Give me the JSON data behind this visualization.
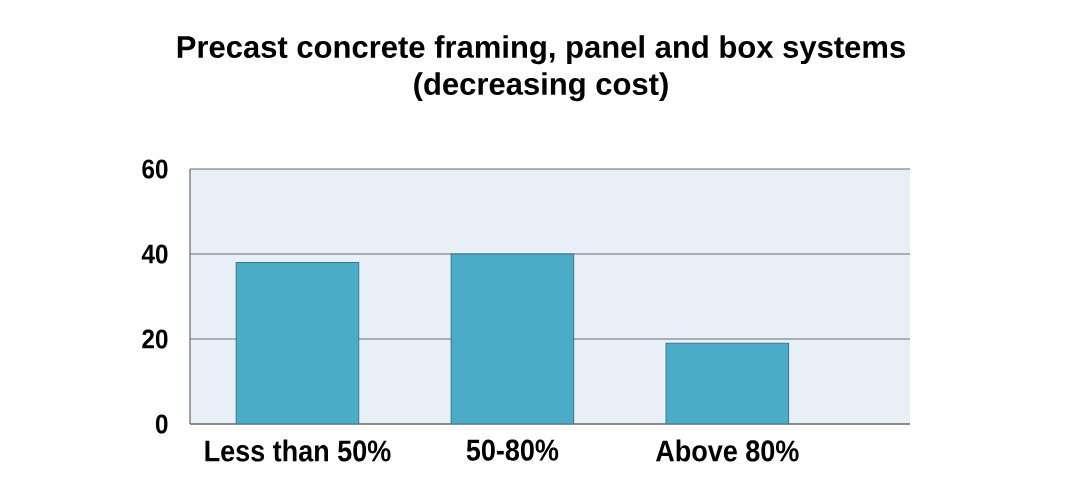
{
  "chart_data": {
    "type": "bar",
    "title": "Precast concrete framing, panel and box systems (decreasing cost)",
    "categories": [
      "Less than 50%",
      "50-80%",
      "Above 80%"
    ],
    "values": [
      38,
      40,
      19
    ],
    "color": "#4aacc6",
    "ylim": [
      0,
      60
    ],
    "yticks": [
      0,
      20,
      40,
      60
    ],
    "grid": "y"
  }
}
